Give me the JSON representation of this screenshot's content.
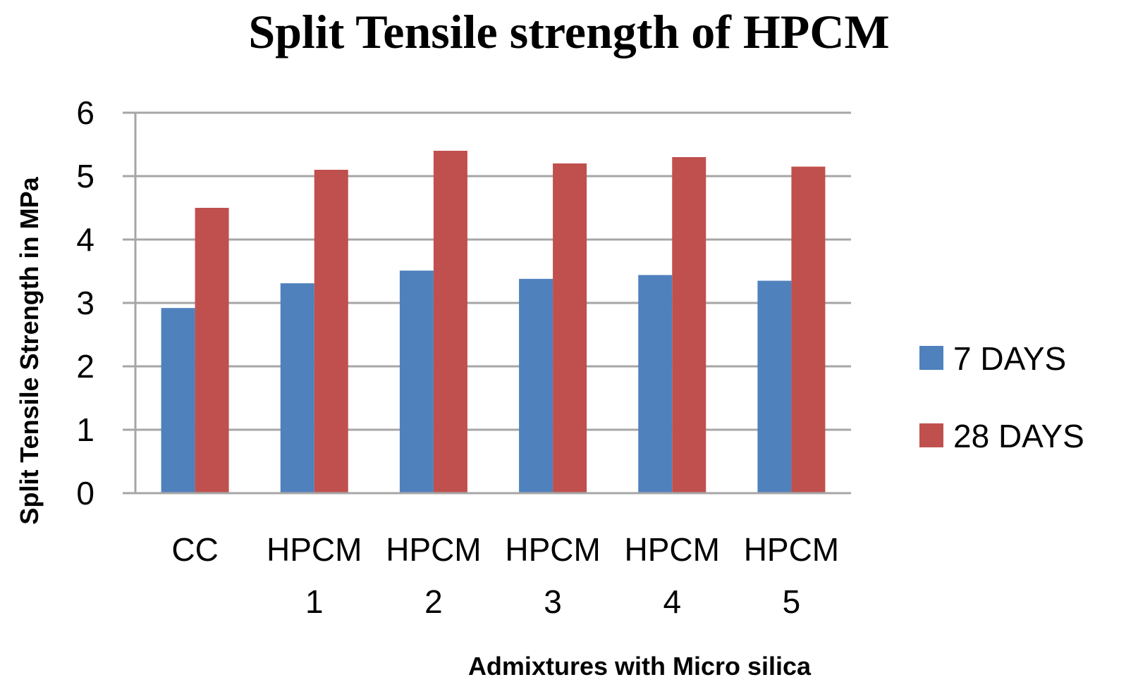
{
  "chart_data": {
    "type": "bar",
    "title": "Split Tensile strength of HPCM",
    "xlabel": "Admixtures with Micro silica",
    "ylabel": "Split Tensile Strength in MPa",
    "categories": [
      [
        "CC"
      ],
      [
        "HPCM",
        "1"
      ],
      [
        "HPCM",
        "2"
      ],
      [
        "HPCM",
        "3"
      ],
      [
        "HPCM",
        "4"
      ],
      [
        "HPCM",
        "5"
      ]
    ],
    "series": [
      {
        "name": "7 DAYS",
        "color": "#4F81BD",
        "values": [
          2.92,
          3.31,
          3.51,
          3.38,
          3.44,
          3.35
        ]
      },
      {
        "name": "28 DAYS",
        "color": "#C0504D",
        "values": [
          4.5,
          5.1,
          5.4,
          5.2,
          5.3,
          5.15
        ]
      }
    ],
    "ylim": [
      0,
      6
    ],
    "yticks": [
      "0",
      "1",
      "2",
      "3",
      "4",
      "5",
      "6"
    ],
    "grid": true,
    "legend_position": "right"
  }
}
